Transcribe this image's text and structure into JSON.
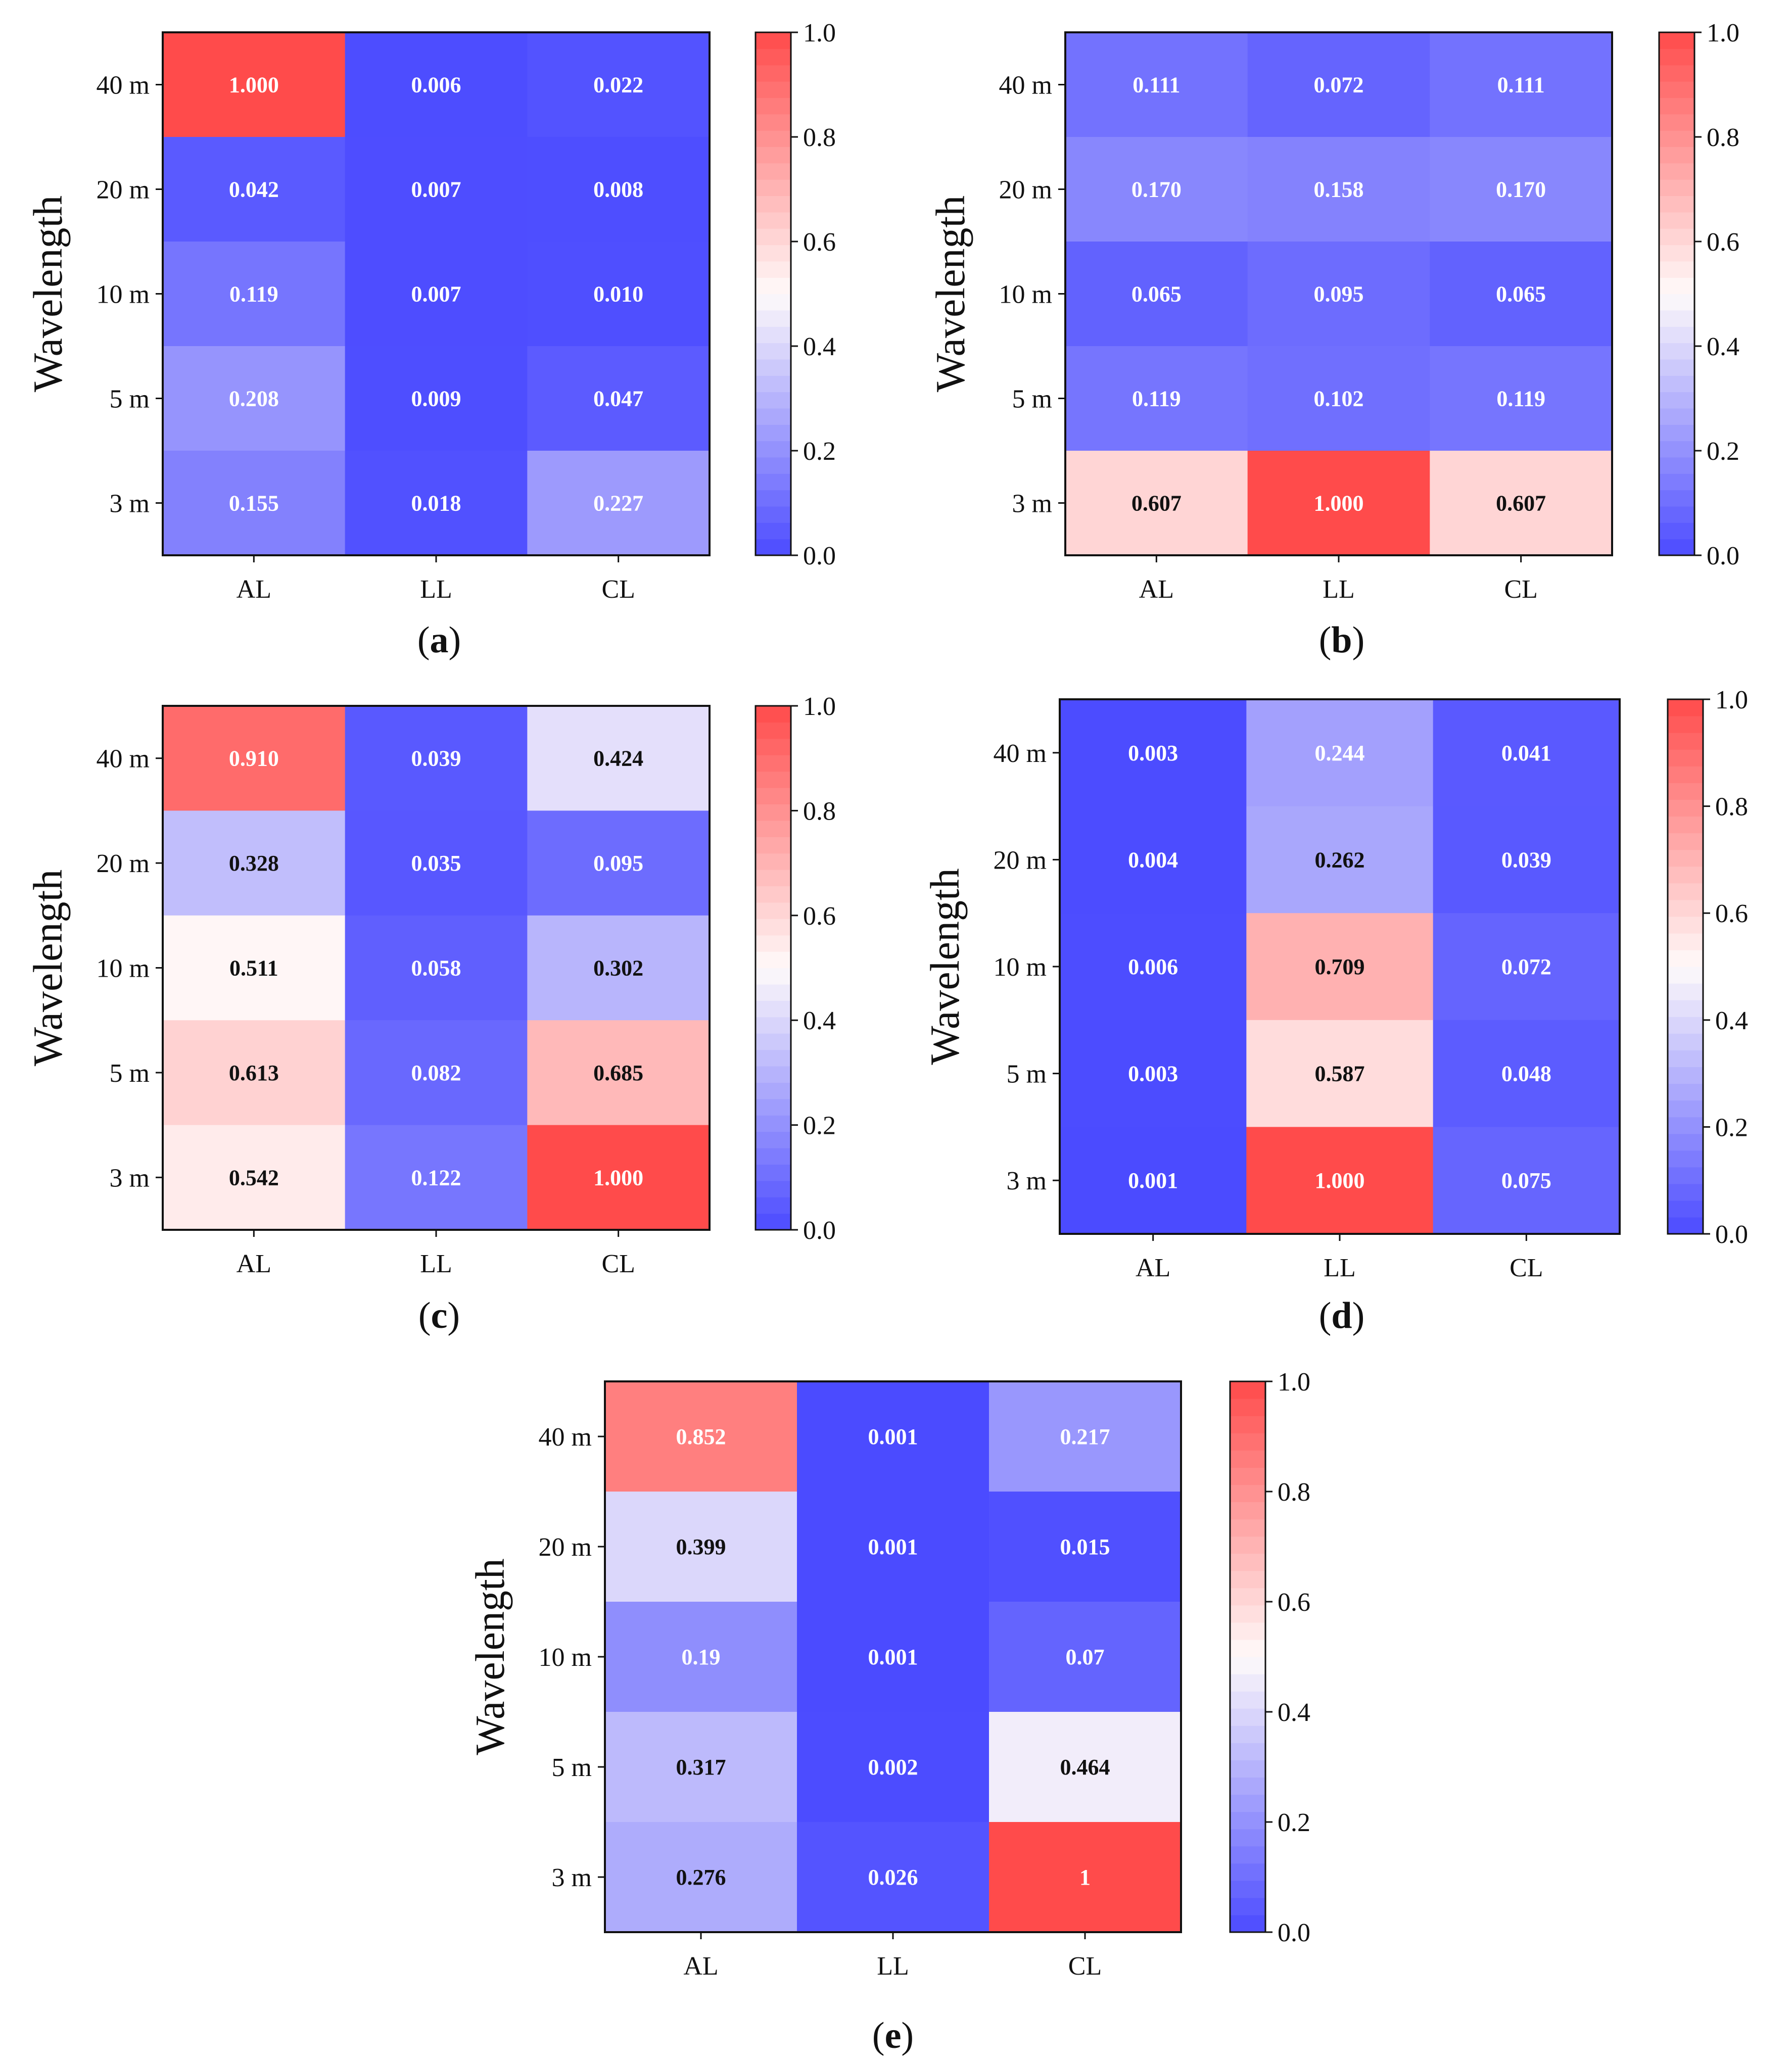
{
  "chart_data": [
    {
      "type": "heatmap",
      "panel": "a",
      "x_categories": [
        "AL",
        "LL",
        "CL"
      ],
      "y_categories": [
        "40 m",
        "20 m",
        "10 m",
        "5 m",
        "3 m"
      ],
      "ylabel": "Wavelength",
      "cells": [
        [
          "1.000",
          "0.006",
          "0.022"
        ],
        [
          "0.042",
          "0.007",
          "0.008"
        ],
        [
          "0.119",
          "0.007",
          "0.010"
        ],
        [
          "0.208",
          "0.009",
          "0.047"
        ],
        [
          "0.155",
          "0.018",
          "0.227"
        ]
      ],
      "colorbar": {
        "range": [
          0,
          1
        ],
        "ticks": [
          "0.0",
          "0.2",
          "0.4",
          "0.6",
          "0.8",
          "1.0"
        ]
      }
    },
    {
      "type": "heatmap",
      "panel": "b",
      "x_categories": [
        "AL",
        "LL",
        "CL"
      ],
      "y_categories": [
        "40 m",
        "20 m",
        "10 m",
        "5 m",
        "3 m"
      ],
      "ylabel": "Wavelength",
      "cells": [
        [
          "0.111",
          "0.072",
          "0.111"
        ],
        [
          "0.170",
          "0.158",
          "0.170"
        ],
        [
          "0.065",
          "0.095",
          "0.065"
        ],
        [
          "0.119",
          "0.102",
          "0.119"
        ],
        [
          "0.607",
          "1.000",
          "0.607"
        ]
      ],
      "colorbar": {
        "range": [
          0,
          1
        ],
        "ticks": [
          "0.0",
          "0.2",
          "0.4",
          "0.6",
          "0.8",
          "1.0"
        ]
      }
    },
    {
      "type": "heatmap",
      "panel": "c",
      "x_categories": [
        "AL",
        "LL",
        "CL"
      ],
      "y_categories": [
        "40 m",
        "20 m",
        "10 m",
        "5 m",
        "3 m"
      ],
      "ylabel": "Wavelength",
      "cells": [
        [
          "0.910",
          "0.039",
          "0.424"
        ],
        [
          "0.328",
          "0.035",
          "0.095"
        ],
        [
          "0.511",
          "0.058",
          "0.302"
        ],
        [
          "0.613",
          "0.082",
          "0.685"
        ],
        [
          "0.542",
          "0.122",
          "1.000"
        ]
      ],
      "colorbar": {
        "range": [
          0,
          1
        ],
        "ticks": [
          "0.0",
          "0.2",
          "0.4",
          "0.6",
          "0.8",
          "1.0"
        ]
      }
    },
    {
      "type": "heatmap",
      "panel": "d",
      "x_categories": [
        "AL",
        "LL",
        "CL"
      ],
      "y_categories": [
        "40 m",
        "20 m",
        "10 m",
        "5 m",
        "3 m"
      ],
      "ylabel": "Wavelength",
      "cells": [
        [
          "0.003",
          "0.244",
          "0.041"
        ],
        [
          "0.004",
          "0.262",
          "0.039"
        ],
        [
          "0.006",
          "0.709",
          "0.072"
        ],
        [
          "0.003",
          "0.587",
          "0.048"
        ],
        [
          "0.001",
          "1.000",
          "0.075"
        ]
      ],
      "colorbar": {
        "range": [
          0,
          1
        ],
        "ticks": [
          "0.0",
          "0.2",
          "0.4",
          "0.6",
          "0.8",
          "1.0"
        ]
      }
    },
    {
      "type": "heatmap",
      "panel": "e",
      "x_categories": [
        "AL",
        "LL",
        "CL"
      ],
      "y_categories": [
        "40 m",
        "20 m",
        "10 m",
        "5 m",
        "3 m"
      ],
      "ylabel": "Wavelength",
      "cells": [
        [
          "0.852",
          "0.001",
          "0.217"
        ],
        [
          "0.399",
          "0.001",
          "0.015"
        ],
        [
          "0.19",
          "0.001",
          "0.07"
        ],
        [
          "0.317",
          "0.002",
          "0.464"
        ],
        [
          "0.276",
          "0.026",
          "1"
        ]
      ],
      "colorbar": {
        "range": [
          0,
          1
        ],
        "ticks": [
          "0.0",
          "0.2",
          "0.4",
          "0.6",
          "0.8",
          "1.0"
        ]
      }
    }
  ],
  "colors": {
    "low": "#4b4bff",
    "mid": "#fffafa",
    "high": "#ff4b4b",
    "text_dark": "#111111",
    "text_light": "#ffffff"
  }
}
